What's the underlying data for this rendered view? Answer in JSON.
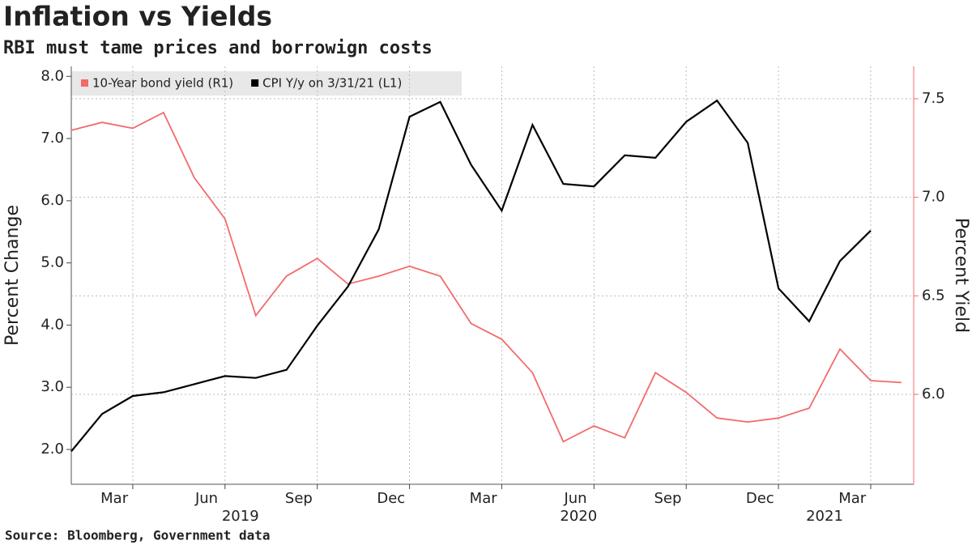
{
  "chart_data": {
    "type": "line",
    "title": "Inflation vs Yields",
    "subtitle": "RBI must tame prices and borrowign costs",
    "source": "Source: Bloomberg, Government data",
    "ylabel": "Percent Change",
    "y2label": "Percent Yield",
    "series": [
      {
        "name": "10-Year bond yield (R1)",
        "color": "#f26b6b",
        "axis": "y2",
        "x": [
          "2019-01",
          "2019-02",
          "2019-03",
          "2019-04",
          "2019-05",
          "2019-06",
          "2019-07",
          "2019-08",
          "2019-09",
          "2019-10",
          "2019-11",
          "2019-12",
          "2020-01",
          "2020-02",
          "2020-03",
          "2020-04",
          "2020-05",
          "2020-06",
          "2020-07",
          "2020-08",
          "2020-09",
          "2020-10",
          "2020-11",
          "2020-12",
          "2021-01",
          "2021-02",
          "2021-03",
          "2021-04"
        ],
        "values": [
          7.34,
          7.38,
          7.35,
          7.43,
          7.1,
          6.89,
          6.4,
          6.6,
          6.69,
          6.56,
          6.6,
          6.65,
          6.6,
          6.36,
          6.28,
          6.11,
          5.76,
          5.84,
          5.78,
          6.11,
          6.01,
          5.88,
          5.86,
          5.88,
          5.93,
          6.23,
          6.07,
          6.06
        ]
      },
      {
        "name": "CPI Y/y on 3/31/21 (L1)",
        "color": "#000000",
        "x": [
          "2019-01",
          "2019-02",
          "2019-03",
          "2019-04",
          "2019-05",
          "2019-06",
          "2019-07",
          "2019-08",
          "2019-09",
          "2019-10",
          "2019-11",
          "2019-12",
          "2020-01",
          "2020-02",
          "2020-03",
          "2020-04",
          "2020-05",
          "2020-06",
          "2020-07",
          "2020-08",
          "2020-09",
          "2020-10",
          "2020-11",
          "2020-12",
          "2021-01",
          "2021-02",
          "2021-03"
        ],
        "values": [
          1.97,
          2.57,
          2.86,
          2.92,
          3.05,
          3.18,
          3.15,
          3.28,
          3.99,
          4.62,
          5.54,
          7.35,
          7.59,
          6.58,
          5.84,
          7.22,
          6.27,
          6.23,
          6.73,
          6.69,
          7.27,
          7.61,
          6.93,
          4.59,
          4.06,
          5.03,
          5.52
        ]
      }
    ],
    "ylim": [
      1.44,
      8.16
    ],
    "yticks": [
      {
        "value": 2,
        "label": "2.0"
      },
      {
        "value": 3,
        "label": "3.0"
      },
      {
        "value": 4,
        "label": "4.0"
      },
      {
        "value": 5,
        "label": "5.0"
      },
      {
        "value": 6,
        "label": "6.0"
      },
      {
        "value": 7,
        "label": "7.0"
      },
      {
        "value": 8,
        "label": "8.0"
      }
    ],
    "y2lim": [
      5.544,
      7.664
    ],
    "y2ticks": [
      {
        "value": 6,
        "label": "6.0"
      },
      {
        "value": 6.5,
        "label": "6.5"
      },
      {
        "value": 7,
        "label": "7.0"
      },
      {
        "value": 7.5,
        "label": "7.5"
      }
    ],
    "xticks": [
      {
        "value": "2019-03",
        "label": "Mar"
      },
      {
        "value": "2019-06",
        "label": "Jun"
      },
      {
        "value": "2019-09",
        "label": "Sep"
      },
      {
        "value": "2019-12",
        "label": "Dec"
      },
      {
        "value": "2020-03",
        "label": "Mar"
      },
      {
        "value": "2020-06",
        "label": "Jun"
      },
      {
        "value": "2020-09",
        "label": "Sep"
      },
      {
        "value": "2020-12",
        "label": "Dec"
      },
      {
        "value": "2021-03",
        "label": "Mar"
      }
    ],
    "year_labels": [
      {
        "value": "2019-07",
        "label": "2019"
      },
      {
        "value": "2020-06",
        "label": "2020"
      },
      {
        "value": "2021-02",
        "label": "2021"
      }
    ],
    "grid": true,
    "legend": "top-left"
  }
}
